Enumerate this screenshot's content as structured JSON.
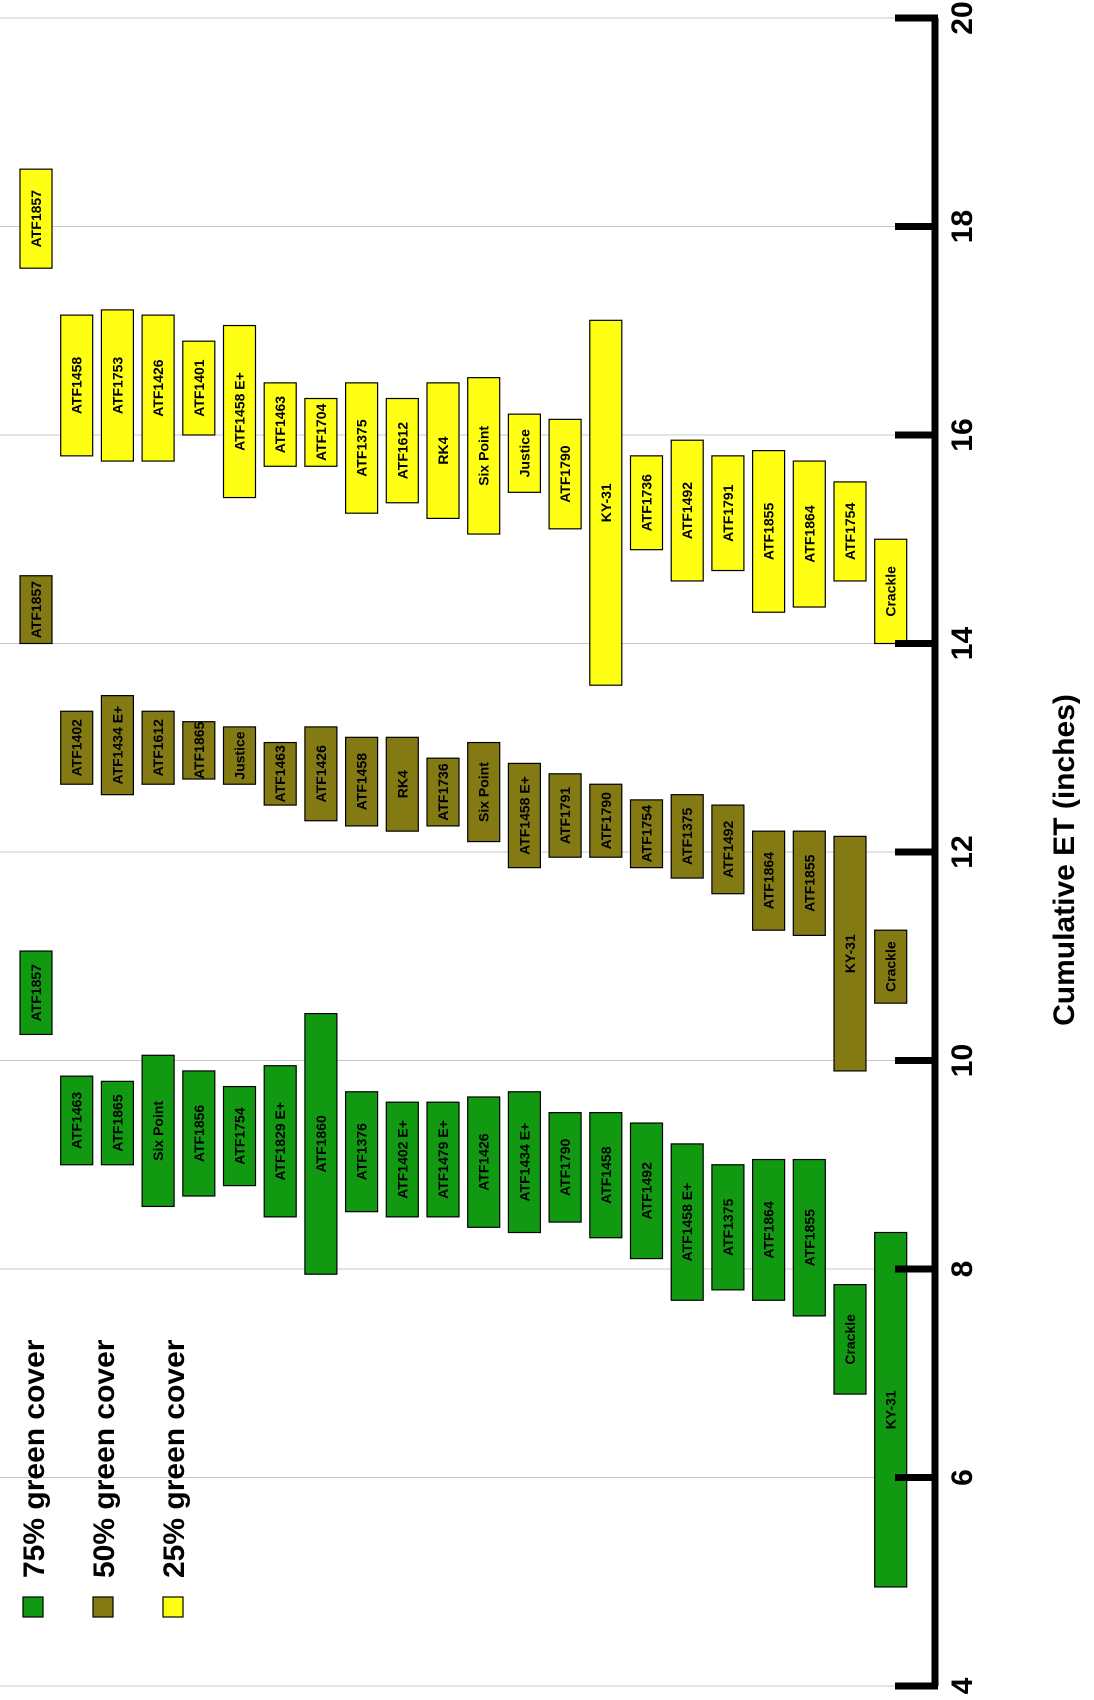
{
  "chart_data": {
    "type": "floating-bar",
    "orientation": "rotated",
    "title": "",
    "xlabel": "Cumulative ET (inches)",
    "xlim": [
      4,
      20
    ],
    "ticks": [
      4,
      6,
      8,
      10,
      12,
      14,
      16,
      18,
      20
    ],
    "grid": true,
    "legend_position": "bottom-left",
    "colors": {
      "75": "#119a11",
      "50": "#837a14",
      "25": "#ffff14"
    },
    "series": [
      {
        "name": "75% green cover",
        "key": "75",
        "bars": [
          {
            "label": "ATF1857",
            "min": 10.25,
            "max": 11.05
          },
          {
            "label": "ATF1463",
            "min": 9.0,
            "max": 9.85
          },
          {
            "label": "ATF1865",
            "min": 9.0,
            "max": 9.8
          },
          {
            "label": "Six Point",
            "min": 8.6,
            "max": 10.05
          },
          {
            "label": "ATF1856",
            "min": 8.7,
            "max": 9.9
          },
          {
            "label": "ATF1754",
            "min": 8.8,
            "max": 9.75
          },
          {
            "label": "ATF1829 E+",
            "min": 8.5,
            "max": 9.95
          },
          {
            "label": "ATF1860",
            "min": 7.95,
            "max": 10.45
          },
          {
            "label": "ATF1376",
            "min": 8.55,
            "max": 9.7
          },
          {
            "label": "ATF1402 E+",
            "min": 8.5,
            "max": 9.6
          },
          {
            "label": "ATF1479 E+",
            "min": 8.5,
            "max": 9.6
          },
          {
            "label": "ATF1426",
            "min": 8.4,
            "max": 9.65
          },
          {
            "label": "ATF1434 E+",
            "min": 8.35,
            "max": 9.7
          },
          {
            "label": "ATF1790",
            "min": 8.45,
            "max": 9.5
          },
          {
            "label": "ATF1458",
            "min": 8.3,
            "max": 9.5
          },
          {
            "label": "ATF1492",
            "min": 8.1,
            "max": 9.4
          },
          {
            "label": "ATF1458 E+",
            "min": 7.7,
            "max": 9.2
          },
          {
            "label": "ATF1375",
            "min": 7.8,
            "max": 9.0
          },
          {
            "label": "ATF1864",
            "min": 7.7,
            "max": 9.05
          },
          {
            "label": "ATF1855",
            "min": 7.55,
            "max": 9.05
          },
          {
            "label": "Crackle",
            "min": 6.8,
            "max": 7.85
          },
          {
            "label": "KY-31",
            "min": 4.95,
            "max": 8.35
          }
        ]
      },
      {
        "name": "50% green cover",
        "key": "50",
        "bars": [
          {
            "label": "ATF1857",
            "min": 14.0,
            "max": 14.65
          },
          {
            "label": "ATF1402",
            "min": 12.65,
            "max": 13.35
          },
          {
            "label": "ATF1434 E+",
            "min": 12.55,
            "max": 13.5
          },
          {
            "label": "ATF1612",
            "min": 12.65,
            "max": 13.35
          },
          {
            "label": "ATF1865",
            "min": 12.7,
            "max": 13.25
          },
          {
            "label": "Justice",
            "min": 12.65,
            "max": 13.2
          },
          {
            "label": "ATF1463",
            "min": 12.45,
            "max": 13.05
          },
          {
            "label": "ATF1426",
            "min": 12.3,
            "max": 13.2
          },
          {
            "label": "ATF1458",
            "min": 12.25,
            "max": 13.1
          },
          {
            "label": "RK4",
            "min": 12.2,
            "max": 13.1
          },
          {
            "label": "ATF1736",
            "min": 12.25,
            "max": 12.9
          },
          {
            "label": "Six Point",
            "min": 12.1,
            "max": 13.05
          },
          {
            "label": "ATF1458 E+",
            "min": 11.85,
            "max": 12.85
          },
          {
            "label": "ATF1791",
            "min": 11.95,
            "max": 12.75
          },
          {
            "label": "ATF1790",
            "min": 11.95,
            "max": 12.65
          },
          {
            "label": "ATF1754",
            "min": 11.85,
            "max": 12.5
          },
          {
            "label": "ATF1375",
            "min": 11.75,
            "max": 12.55
          },
          {
            "label": "ATF1492",
            "min": 11.6,
            "max": 12.45
          },
          {
            "label": "ATF1864",
            "min": 11.25,
            "max": 12.2
          },
          {
            "label": "ATF1855",
            "min": 11.2,
            "max": 12.2
          },
          {
            "label": "KY-31",
            "min": 9.9,
            "max": 12.15
          },
          {
            "label": "Crackle",
            "min": 10.55,
            "max": 11.25
          }
        ]
      },
      {
        "name": "25% green cover",
        "key": "25",
        "bars": [
          {
            "label": "ATF1857",
            "min": 17.6,
            "max": 18.55
          },
          {
            "label": "ATF1458",
            "min": 15.8,
            "max": 17.15
          },
          {
            "label": "ATF1753",
            "min": 15.75,
            "max": 17.2
          },
          {
            "label": "ATF1426",
            "min": 15.75,
            "max": 17.15
          },
          {
            "label": "ATF1401",
            "min": 16.0,
            "max": 16.9
          },
          {
            "label": "ATF1458 E+",
            "min": 15.4,
            "max": 17.05
          },
          {
            "label": "ATF1463",
            "min": 15.7,
            "max": 16.5
          },
          {
            "label": "ATF1704",
            "min": 15.7,
            "max": 16.35
          },
          {
            "label": "ATF1375",
            "min": 15.25,
            "max": 16.5
          },
          {
            "label": "ATF1612",
            "min": 15.35,
            "max": 16.35
          },
          {
            "label": "RK4",
            "min": 15.2,
            "max": 16.5
          },
          {
            "label": "Six Point",
            "min": 15.05,
            "max": 16.55
          },
          {
            "label": "Justice",
            "min": 15.45,
            "max": 16.2
          },
          {
            "label": "ATF1790",
            "min": 15.1,
            "max": 16.15
          },
          {
            "label": "KY-31",
            "min": 13.6,
            "max": 17.1
          },
          {
            "label": "ATF1736",
            "min": 14.9,
            "max": 15.8
          },
          {
            "label": "ATF1492",
            "min": 14.6,
            "max": 15.95
          },
          {
            "label": "ATF1791",
            "min": 14.7,
            "max": 15.8
          },
          {
            "label": "ATF1855",
            "min": 14.3,
            "max": 15.85
          },
          {
            "label": "ATF1864",
            "min": 14.35,
            "max": 15.75
          },
          {
            "label": "ATF1754",
            "min": 14.6,
            "max": 15.55
          },
          {
            "label": "Crackle",
            "min": 14.0,
            "max": 15.0
          }
        ]
      }
    ]
  }
}
